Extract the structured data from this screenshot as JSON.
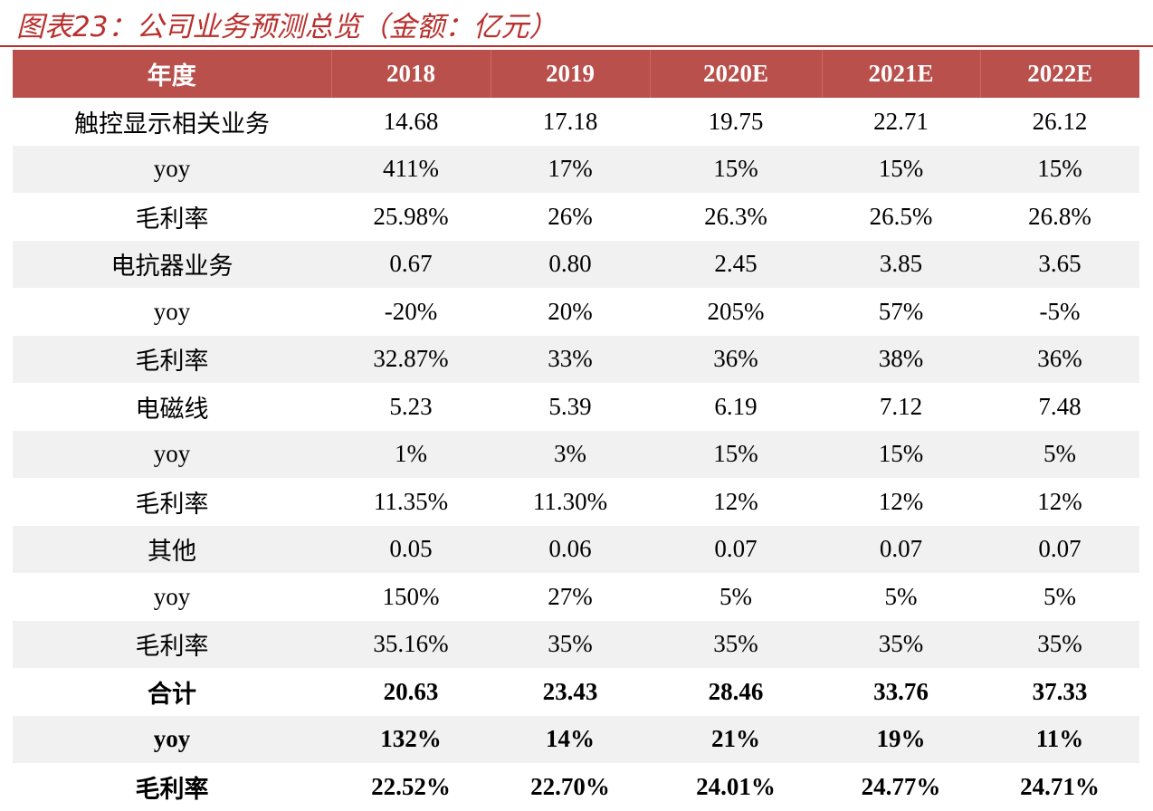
{
  "title": "图表23：公司业务预测总览（金额：亿元）",
  "table": {
    "header": [
      "年度",
      "2018",
      "2019",
      "2020E",
      "2021E",
      "2022E"
    ],
    "rows": [
      [
        "触控显示相关业务",
        "14.68",
        "17.18",
        "19.75",
        "22.71",
        "26.12"
      ],
      [
        "yoy",
        "411%",
        "17%",
        "15%",
        "15%",
        "15%"
      ],
      [
        "毛利率",
        "25.98%",
        "26%",
        "26.3%",
        "26.5%",
        "26.8%"
      ],
      [
        "电抗器业务",
        "0.67",
        "0.80",
        "2.45",
        "3.85",
        "3.65"
      ],
      [
        "yoy",
        "-20%",
        "20%",
        "205%",
        "57%",
        "-5%"
      ],
      [
        "毛利率",
        "32.87%",
        "33%",
        "36%",
        "38%",
        "36%"
      ],
      [
        "电磁线",
        "5.23",
        "5.39",
        "6.19",
        "7.12",
        "7.48"
      ],
      [
        "yoy",
        "1%",
        "3%",
        "15%",
        "15%",
        "5%"
      ],
      [
        "毛利率",
        "11.35%",
        "11.30%",
        "12%",
        "12%",
        "12%"
      ],
      [
        "其他",
        "0.05",
        "0.06",
        "0.07",
        "0.07",
        "0.07"
      ],
      [
        "yoy",
        "150%",
        "27%",
        "5%",
        "5%",
        "5%"
      ],
      [
        "毛利率",
        "35.16%",
        "35%",
        "35%",
        "35%",
        "35%"
      ],
      [
        "合计",
        "20.63",
        "23.43",
        "28.46",
        "33.76",
        "37.33"
      ],
      [
        "yoy",
        "132%",
        "14%",
        "21%",
        "19%",
        "11%"
      ],
      [
        "毛利率",
        "22.52%",
        "22.70%",
        "24.01%",
        "24.77%",
        "24.71%"
      ]
    ]
  }
}
